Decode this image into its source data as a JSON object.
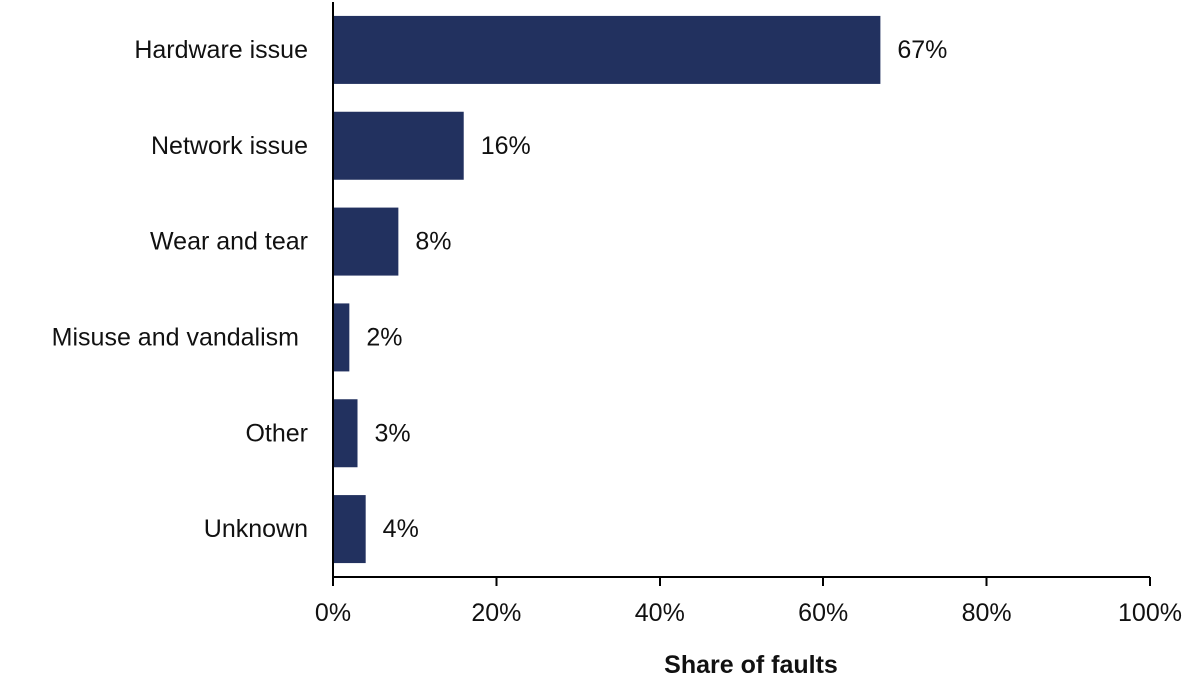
{
  "chart_data": {
    "type": "bar",
    "orientation": "horizontal",
    "categories": [
      "Hardware issue",
      "Network issue",
      "Wear and tear",
      "Misuse and vandalism",
      "Other",
      "Unknown"
    ],
    "values": [
      67,
      16,
      8,
      2,
      3,
      4
    ],
    "data_labels": [
      "67%",
      "16%",
      "8%",
      "2%",
      "3%",
      "4%"
    ],
    "xlabel": "Share of faults",
    "ylabel": "",
    "title": "",
    "xlim": [
      0,
      100
    ],
    "x_ticks": [
      0,
      20,
      40,
      60,
      80,
      100
    ],
    "x_tick_labels": [
      "0%",
      "20%",
      "40%",
      "60%",
      "80%",
      "100%"
    ],
    "grid": false,
    "legend": "none",
    "bar_color": "#22315f"
  }
}
